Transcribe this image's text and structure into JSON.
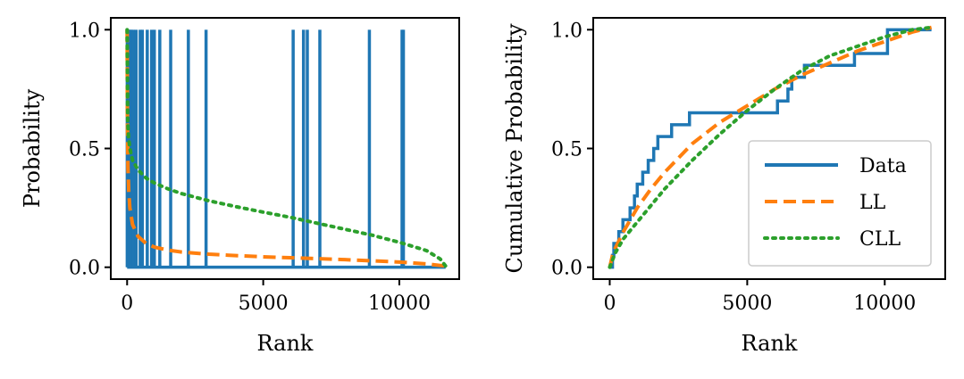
{
  "colors": {
    "data": "#1f77b4",
    "ll": "#ff7f0e",
    "cll": "#2ca02c",
    "axis": "#000000"
  },
  "chart_data": [
    {
      "type": "line",
      "id": "left",
      "title": "",
      "xlabel": "Rank",
      "ylabel": "Probability",
      "xlim": [
        -600,
        12200
      ],
      "ylim": [
        -0.05,
        1.05
      ],
      "xticks": [
        0,
        5000,
        10000
      ],
      "xtick_labels": [
        "0",
        "5000",
        "10000"
      ],
      "yticks": [
        0.0,
        0.5,
        1.0
      ],
      "ytick_labels": [
        "0.0",
        "0.5",
        "1.0"
      ],
      "grid": false,
      "x_max": 11700,
      "series": [
        {
          "name": "Data",
          "style": "solid",
          "spike_ranks": [
            5,
            12,
            30,
            60,
            110,
            150,
            230,
            330,
            480,
            560,
            740,
            900,
            1000,
            1200,
            1600,
            2250,
            2900,
            6100,
            6480,
            6620,
            7080,
            8900,
            10100,
            10150
          ],
          "baseline": 0.0,
          "peak": 1.0
        },
        {
          "name": "LL",
          "style": "dashed",
          "x": [
            0,
            10,
            30,
            60,
            100,
            200,
            400,
            700,
            1000,
            1500,
            2000,
            3000,
            4000,
            5000,
            6000,
            7000,
            8000,
            9000,
            10000,
            11000,
            11700
          ],
          "y": [
            1.0,
            0.62,
            0.42,
            0.32,
            0.25,
            0.18,
            0.13,
            0.1,
            0.085,
            0.072,
            0.064,
            0.055,
            0.049,
            0.044,
            0.04,
            0.036,
            0.032,
            0.027,
            0.022,
            0.014,
            0.005
          ]
        },
        {
          "name": "CLL",
          "style": "dotted",
          "x": [
            0,
            20,
            50,
            100,
            200,
            400,
            700,
            1000,
            1500,
            2000,
            3000,
            4000,
            5000,
            6000,
            7000,
            8000,
            9000,
            10000,
            11000,
            11500,
            11700
          ],
          "y": [
            1.0,
            0.62,
            0.55,
            0.5,
            0.45,
            0.41,
            0.375,
            0.355,
            0.33,
            0.31,
            0.28,
            0.255,
            0.232,
            0.21,
            0.185,
            0.16,
            0.135,
            0.105,
            0.07,
            0.035,
            0.005
          ]
        }
      ]
    },
    {
      "type": "line",
      "id": "right",
      "title": "",
      "xlabel": "Rank",
      "ylabel": "Cumulative Probability",
      "xlim": [
        -600,
        12200
      ],
      "ylim": [
        -0.05,
        1.05
      ],
      "xticks": [
        0,
        5000,
        10000
      ],
      "xtick_labels": [
        "0",
        "5000",
        "10000"
      ],
      "yticks": [
        0.0,
        0.5,
        1.0
      ],
      "ytick_labels": [
        "0.0",
        "0.5",
        "1.0"
      ],
      "grid": false,
      "legend": {
        "position": "lower-right",
        "entries": [
          {
            "label": "Data",
            "style": "solid"
          },
          {
            "label": "LL",
            "style": "dashed"
          },
          {
            "label": "CLL",
            "style": "dotted"
          }
        ]
      },
      "series": [
        {
          "name": "Data",
          "style": "solid",
          "steps": [
            [
              0,
              0.0
            ],
            [
              100,
              0.05
            ],
            [
              150,
              0.1
            ],
            [
              330,
              0.15
            ],
            [
              480,
              0.2
            ],
            [
              740,
              0.25
            ],
            [
              900,
              0.3
            ],
            [
              1000,
              0.35
            ],
            [
              1200,
              0.4
            ],
            [
              1400,
              0.45
            ],
            [
              1600,
              0.5
            ],
            [
              1750,
              0.55
            ],
            [
              2250,
              0.6
            ],
            [
              2900,
              0.65
            ],
            [
              6100,
              0.7
            ],
            [
              6480,
              0.75
            ],
            [
              6620,
              0.8
            ],
            [
              7080,
              0.85
            ],
            [
              8900,
              0.9
            ],
            [
              10100,
              1.0
            ],
            [
              11700,
              1.0
            ]
          ]
        },
        {
          "name": "LL",
          "style": "dashed",
          "x": [
            0,
            100,
            200,
            500,
            1000,
            1500,
            2000,
            3000,
            4000,
            5000,
            6000,
            7000,
            8000,
            9000,
            10000,
            11000,
            11700
          ],
          "y": [
            0.0,
            0.05,
            0.08,
            0.15,
            0.25,
            0.33,
            0.4,
            0.52,
            0.61,
            0.68,
            0.75,
            0.81,
            0.86,
            0.91,
            0.95,
            0.99,
            1.01
          ]
        },
        {
          "name": "CLL",
          "style": "dotted",
          "x": [
            0,
            100,
            200,
            500,
            1000,
            1500,
            2000,
            3000,
            4000,
            5000,
            6000,
            7000,
            8000,
            9000,
            10000,
            11000,
            11700
          ],
          "y": [
            0.0,
            0.03,
            0.06,
            0.12,
            0.19,
            0.26,
            0.33,
            0.45,
            0.56,
            0.66,
            0.75,
            0.83,
            0.89,
            0.93,
            0.97,
            1.0,
            1.01
          ]
        }
      ]
    }
  ]
}
